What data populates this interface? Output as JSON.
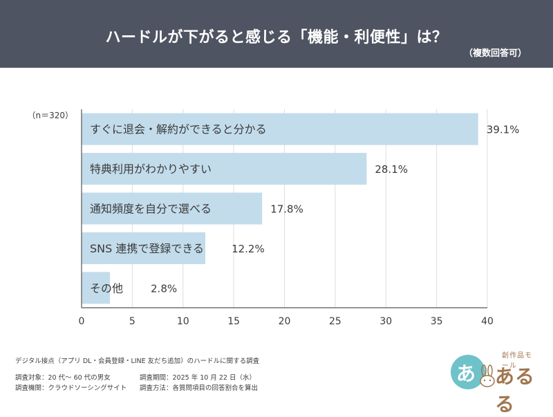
{
  "header": {
    "title": "ハードルが下がると感じる「機能・利便性」は？",
    "subtitle": "（複数回答可）"
  },
  "chart_data": {
    "type": "bar",
    "orientation": "horizontal",
    "n_label": "（n＝320）",
    "categories": [
      "すぐに退会・解約ができると分かる",
      "特典利用がわかりやすい",
      "通知頻度を自分で選べる",
      "SNS 連携で登録できる",
      "その他"
    ],
    "values": [
      39.1,
      28.1,
      17.8,
      12.2,
      2.8
    ],
    "value_labels": [
      "39.1%",
      "28.1%",
      "17.8%",
      "12.2%",
      "2.8%"
    ],
    "xlim": [
      0,
      40
    ],
    "xticks": [
      0,
      5,
      10,
      15,
      20,
      25,
      30,
      35,
      40
    ],
    "grid": true,
    "bar_color": "#c3dceb"
  },
  "footer": {
    "line1": "デジタル接点（アプリ DL・会員登録・LINE 友だち追加）のハードルに関する調査",
    "target": "調査対象：20 代〜 60 代の男女",
    "agency": "調査機関：クラウドソーシングサイト",
    "period": "調査期間：2025 年 10 月 22 日（水）",
    "method": "調査方法：各質問項目の回答割合を算出"
  },
  "logo": {
    "circle_char": "あ",
    "small_text": "創作品モール",
    "main_text": "あるる"
  }
}
